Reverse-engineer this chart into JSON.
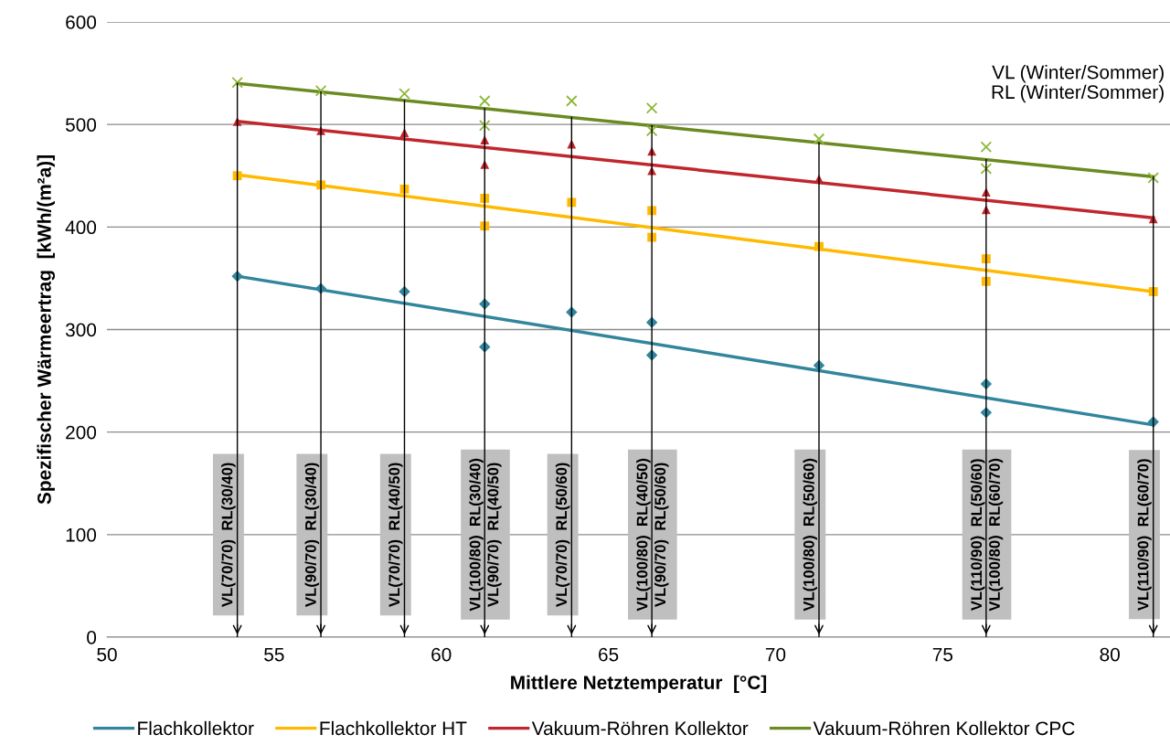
{
  "chart_data": {
    "type": "scatter",
    "xlabel": "Mittlere Netztemperatur  [°C]",
    "ylabel": "Spezifischer Wärmeertrag  [kWh/(m²a)]",
    "xlim": [
      50,
      81.8
    ],
    "xticks": [
      50,
      55,
      60,
      65,
      70,
      75,
      80
    ],
    "ylim": [
      0,
      600
    ],
    "yticks": [
      0,
      100,
      200,
      300,
      400,
      500,
      600
    ],
    "grid": "y",
    "legend": "bottom",
    "series": [
      {
        "marker": "diamond",
        "color": "#31859c",
        "x": [
          53.9,
          56.4,
          58.9,
          61.3,
          61.3,
          63.9,
          66.3,
          66.3,
          71.3,
          76.3,
          76.3,
          81.3
        ],
        "values": [
          352,
          340,
          337,
          325,
          283,
          317,
          307,
          275,
          265,
          247,
          219,
          210
        ]
      },
      {
        "marker": "square",
        "color": "#ffb900",
        "x": [
          53.9,
          56.4,
          58.9,
          61.3,
          61.3,
          63.9,
          66.3,
          66.3,
          71.3,
          76.3,
          76.3,
          81.3
        ],
        "values": [
          450,
          441,
          437,
          428,
          401,
          424,
          416,
          390,
          381,
          369,
          347,
          337
        ]
      },
      {
        "marker": "triangle",
        "color": "#c0272d",
        "x": [
          53.9,
          56.4,
          58.9,
          61.3,
          61.3,
          63.9,
          66.3,
          66.3,
          71.3,
          76.3,
          76.3,
          81.3
        ],
        "values": [
          503,
          494,
          492,
          485,
          461,
          481,
          474,
          455,
          447,
          434,
          417,
          408
        ]
      },
      {
        "marker": "cross",
        "color": "#8db83a",
        "x": [
          53.9,
          56.4,
          58.9,
          61.3,
          61.3,
          63.9,
          66.3,
          66.3,
          71.3,
          76.3,
          76.3,
          81.3
        ],
        "values": [
          541,
          533,
          530,
          523,
          499,
          523,
          516,
          494,
          486,
          478,
          457,
          448
        ]
      },
      {
        "type": "line",
        "name": "Flachkollektor",
        "color": "#31859c",
        "x": [
          53.9,
          81.3
        ],
        "values": [
          352,
          207
        ]
      },
      {
        "type": "line",
        "name": "Flachkollektor HT",
        "color": "#ffb900",
        "x": [
          53.9,
          81.3
        ],
        "values": [
          451,
          337
        ]
      },
      {
        "type": "line",
        "name": "Vakuum-Röhren Kollektor",
        "color": "#c0272d",
        "x": [
          53.9,
          81.3
        ],
        "values": [
          503,
          409
        ]
      },
      {
        "type": "line",
        "name": "Vakuum-Röhren Kollektor CPC",
        "color": "#6b8a22",
        "x": [
          53.9,
          81.3
        ],
        "values": [
          540,
          449
        ]
      }
    ],
    "annotations": [
      "VL (Winter/Sommer)\nRL (Winter/Sommer)"
    ],
    "ref_lines": [
      {
        "axis": "x",
        "value": 53.9,
        "label": "VL(70/70)  RL(30/40)"
      },
      {
        "axis": "x",
        "value": 56.4,
        "label": "VL(90/70)  RL(30/40)"
      },
      {
        "axis": "x",
        "value": 58.9,
        "label": "VL(70/70)  RL(40/50)"
      },
      {
        "axis": "x",
        "value": 61.3,
        "label": "VL(100/80)  RL(30/40)\nVL(90/70)  RL(40/50)"
      },
      {
        "axis": "x",
        "value": 63.9,
        "label": "VL(70/70)  RL(50/60)"
      },
      {
        "axis": "x",
        "value": 66.3,
        "label": "VL(100/80)  RL(40/50)\nVL(90/70)  RL(50/60)"
      },
      {
        "axis": "x",
        "value": 71.3,
        "label": "VL(100/80)  RL(50/60)"
      },
      {
        "axis": "x",
        "value": 76.3,
        "label": "VL(110/90)  RL(50/60)\nVL(100/80)  RL(60/70)"
      },
      {
        "axis": "x",
        "value": 81.3,
        "label": "VL(110/90)  RL(60/70)"
      }
    ]
  }
}
